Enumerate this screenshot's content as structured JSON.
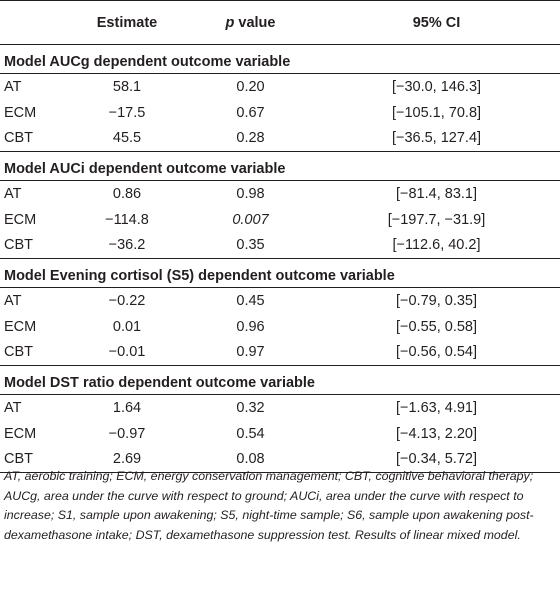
{
  "header": {
    "col1": "",
    "col2": "Estimate",
    "col3_italic": "p",
    "col3_rest": " value",
    "col4": "95% CI"
  },
  "sections": [
    {
      "title": "Model AUCg dependent outcome variable",
      "rows": [
        {
          "label": "AT",
          "estimate": "58.1",
          "p": "0.20",
          "ci": "[−30.0, 146.3]"
        },
        {
          "label": "ECM",
          "estimate": "−17.5",
          "p": "0.67",
          "ci": "[−105.1, 70.8]"
        },
        {
          "label": "CBT",
          "estimate": "45.5",
          "p": "0.28",
          "ci": "[−36.5, 127.4]"
        }
      ]
    },
    {
      "title": "Model AUCi dependent outcome variable",
      "rows": [
        {
          "label": "AT",
          "estimate": "0.86",
          "p": "0.98",
          "ci": "[−81.4, 83.1]"
        },
        {
          "label": "ECM",
          "estimate": "−114.8",
          "p": "0.007",
          "ci": "[−197.7, −31.9]",
          "p_italic": true
        },
        {
          "label": "CBT",
          "estimate": "−36.2",
          "p": "0.35",
          "ci": "[−112.6, 40.2]"
        }
      ]
    },
    {
      "title": "Model Evening cortisol (S5) dependent outcome variable",
      "rows": [
        {
          "label": "AT",
          "estimate": "−0.22",
          "p": "0.45",
          "ci": "[−0.79, 0.35]"
        },
        {
          "label": "ECM",
          "estimate": "0.01",
          "p": "0.96",
          "ci": "[−0.55, 0.58]"
        },
        {
          "label": "CBT",
          "estimate": "−0.01",
          "p": "0.97",
          "ci": "[−0.56, 0.54]"
        }
      ]
    },
    {
      "title": "Model DST ratio dependent outcome variable",
      "rows": [
        {
          "label": "AT",
          "estimate": "1.64",
          "p": "0.32",
          "ci": "[−1.63, 4.91]"
        },
        {
          "label": "ECM",
          "estimate": "−0.97",
          "p": "0.54",
          "ci": "[−4.13, 2.20]"
        },
        {
          "label": "CBT",
          "estimate": "2.69",
          "p": "0.08",
          "ci": "[−0.34, 5.72]"
        }
      ]
    }
  ],
  "footnote": "AT, aerobic training; ECM, energy conservation management; CBT, cognitive behavioral therapy; AUCg, area under the curve with respect to ground; AUCi, area under the curve with respect to increase; S1, sample upon awakening; S5, night-time sample; S6, sample upon awakening post-dexamethasone intake; DST, dexamethasone suppression test. Results of linear mixed model."
}
